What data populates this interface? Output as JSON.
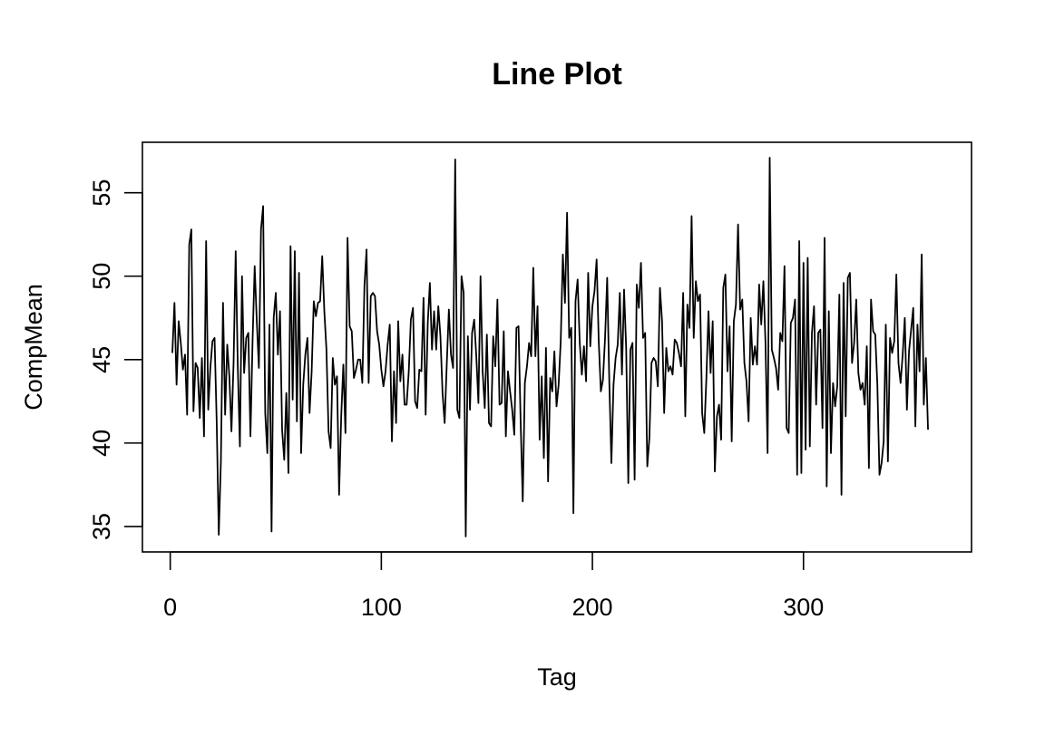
{
  "chart_data": {
    "type": "line",
    "title": "Line Plot",
    "xlabel": "Tag",
    "ylabel": "CompMean",
    "xlim": [
      1,
      365
    ],
    "ylim": [
      34.4,
      57.1
    ],
    "x_ticks": [
      0,
      100,
      200,
      300
    ],
    "y_ticks": [
      35,
      40,
      45,
      50,
      55
    ],
    "grid": false,
    "legend": "none",
    "line_color": "#000000",
    "series": [
      {
        "x_start": 1,
        "x_step": 1,
        "values": [
          45.4,
          48.4,
          43.5,
          47.3,
          46.0,
          44.4,
          45.3,
          41.7,
          51.9,
          52.8,
          41.9,
          44.8,
          44.5,
          41.5,
          45.1,
          40.4,
          52.1,
          42.0,
          44.5,
          46.1,
          46.3,
          41.3,
          34.5,
          38.9,
          48.4,
          41.7,
          45.9,
          44.0,
          40.7,
          44.8,
          51.5,
          44.6,
          39.8,
          50.0,
          44.2,
          46.3,
          46.6,
          40.4,
          46.1,
          50.6,
          47.3,
          44.5,
          52.8,
          54.2,
          41.8,
          39.4,
          47.1,
          34.7,
          47.5,
          49.0,
          45.3,
          47.9,
          40.8,
          39.0,
          43.0,
          38.2,
          51.8,
          42.6,
          51.5,
          41.3,
          50.2,
          39.4,
          43.5,
          45.3,
          46.3,
          41.8,
          44.3,
          48.5,
          47.6,
          48.4,
          48.5,
          51.2,
          47.9,
          45.6,
          40.7,
          39.7,
          45.1,
          43.5,
          44.0,
          36.9,
          41.6,
          44.7,
          40.6,
          52.3,
          47.0,
          46.7,
          43.9,
          44.4,
          45.0,
          45.0,
          43.6,
          49.4,
          51.6,
          43.6,
          48.8,
          49.0,
          48.8,
          46.7,
          45.9,
          44.4,
          43.4,
          44.3,
          45.9,
          47.1,
          40.1,
          44.3,
          41.2,
          47.3,
          43.7,
          45.3,
          42.3,
          42.3,
          44.3,
          47.4,
          48.1,
          42.5,
          42.1,
          44.4,
          44.3,
          48.7,
          41.7,
          47.2,
          49.6,
          45.6,
          47.9,
          45.6,
          48.2,
          46.4,
          43.0,
          41.2,
          44.7,
          48.0,
          45.3,
          44.5,
          57.0,
          42.0,
          41.5,
          50.0,
          49.0,
          34.4,
          46.4,
          42.0,
          46.6,
          47.4,
          45.2,
          42.4,
          50.0,
          44.3,
          42.1,
          46.5,
          41.2,
          41.0,
          46.4,
          44.6,
          48.6,
          42.3,
          42.4,
          46.7,
          40.4,
          44.3,
          43.1,
          42.0,
          40.5,
          46.9,
          47.0,
          41.3,
          36.5,
          43.6,
          44.6,
          46.0,
          45.2,
          50.5,
          45.2,
          48.2,
          40.2,
          44.0,
          39.1,
          45.7,
          37.7,
          43.9,
          43.1,
          45.5,
          42.2,
          43.5,
          46.1,
          51.3,
          48.4,
          53.8,
          46.3,
          46.9,
          35.8,
          48.5,
          49.8,
          46.0,
          44.1,
          45.8,
          43.7,
          50.2,
          45.8,
          48.2,
          49.1,
          51.0,
          46.1,
          43.1,
          43.8,
          46.3,
          49.9,
          43.7,
          38.8,
          43.5,
          45.1,
          45.9,
          49.0,
          44.1,
          49.2,
          45.7,
          37.6,
          45.6,
          46.0,
          37.8,
          49.5,
          48.1,
          50.8,
          46.3,
          46.6,
          38.6,
          40.3,
          44.8,
          45.1,
          44.9,
          43.4,
          49.3,
          47.3,
          41.8,
          45.7,
          44.3,
          44.6,
          44.1,
          46.2,
          46.0,
          45.4,
          44.6,
          49.0,
          41.6,
          48.3,
          46.9,
          53.6,
          46.3,
          49.7,
          48.5,
          48.9,
          41.8,
          40.6,
          43.9,
          47.9,
          44.2,
          47.3,
          38.3,
          41.6,
          42.3,
          40.2,
          49.3,
          50.1,
          44.3,
          47.0,
          40.1,
          47.3,
          48.3,
          53.1,
          48.0,
          48.6,
          44.8,
          43.7,
          41.3,
          47.5,
          44.7,
          45.8,
          44.7,
          49.5,
          47.1,
          49.7,
          46.0,
          39.4,
          57.1,
          45.6,
          45.1,
          44.5,
          43.2,
          46.6,
          46.1,
          50.6,
          40.9,
          40.6,
          47.2,
          47.5,
          48.6,
          38.1,
          52.1,
          38.2,
          50.8,
          39.6,
          51.1,
          39.8,
          46.6,
          48.2,
          42.3,
          46.6,
          46.8,
          40.9,
          52.3,
          37.4,
          47.9,
          39.4,
          43.6,
          42.2,
          43.4,
          48.9,
          36.9,
          49.6,
          41.6,
          49.9,
          50.2,
          44.8,
          46.0,
          48.6,
          44.2,
          43.2,
          43.6,
          42.3,
          45.8,
          38.5,
          48.6,
          46.7,
          46.5,
          43.5,
          38.1,
          38.8,
          40.1,
          47.1,
          38.9,
          46.3,
          45.4,
          46.1,
          50.1,
          44.8,
          43.6,
          45.3,
          47.5,
          42.0,
          45.5,
          46.8,
          48.1,
          41.0,
          47.1,
          44.3,
          51.3,
          42.3,
          45.1,
          40.8
        ]
      }
    ]
  }
}
